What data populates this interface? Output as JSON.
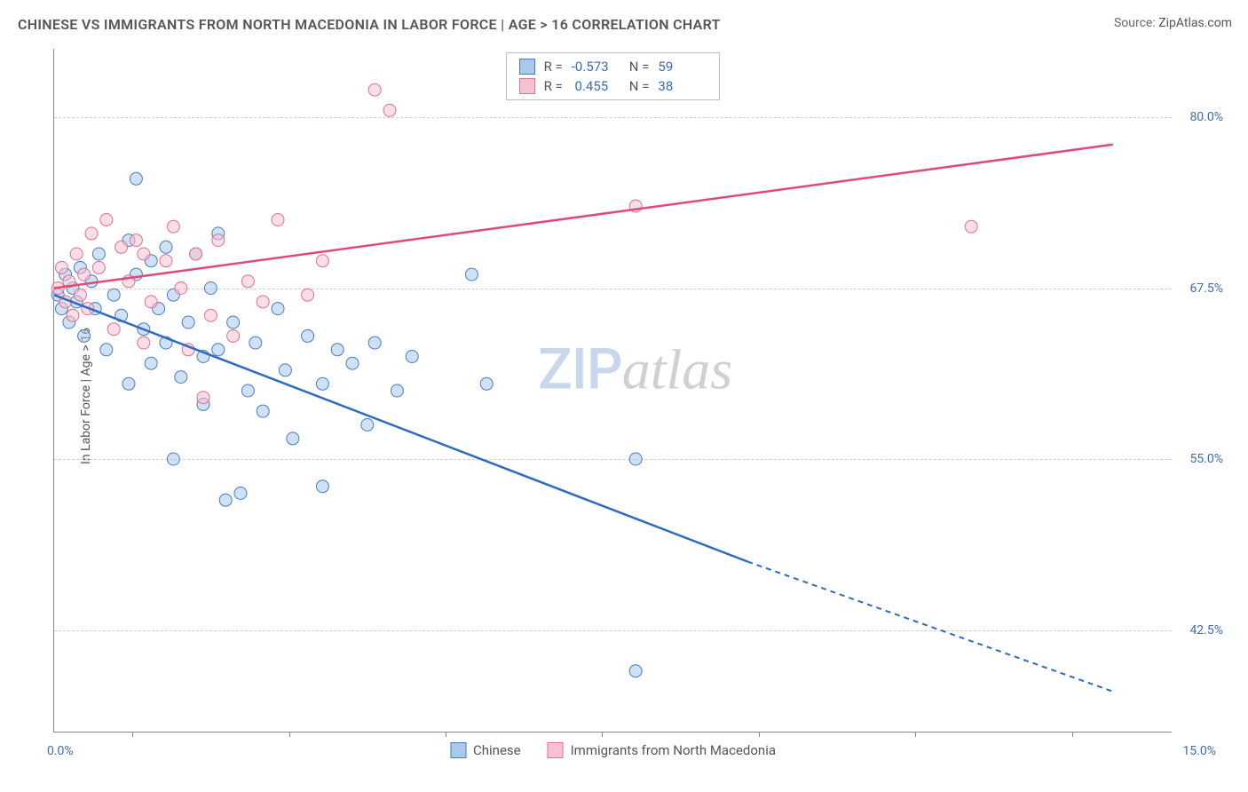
{
  "title": "CHINESE VS IMMIGRANTS FROM NORTH MACEDONIA IN LABOR FORCE | AGE > 16 CORRELATION CHART",
  "source_label": "Source:",
  "source_value": "ZipAtlas.com",
  "y_axis_title": "In Labor Force | Age > 16",
  "watermark_zip": "ZIP",
  "watermark_atlas": "atlas",
  "chart": {
    "type": "scatter",
    "xlim": [
      0,
      15
    ],
    "ylim": [
      35,
      85
    ],
    "x_axis": {
      "min_label": "0.0%",
      "max_label": "15.0%",
      "tick_positions_pct": [
        7,
        21,
        35,
        49,
        63,
        77,
        91
      ]
    },
    "y_axis": {
      "ticks": [
        {
          "value": 42.5,
          "label": "42.5%"
        },
        {
          "value": 55.0,
          "label": "55.0%"
        },
        {
          "value": 67.5,
          "label": "67.5%"
        },
        {
          "value": 80.0,
          "label": "80.0%"
        }
      ]
    },
    "series": [
      {
        "name": "Chinese",
        "fill_color": "#a8c8ec",
        "stroke_color": "#4a7bc0",
        "line_color": "#2e6bc0",
        "r_value": "-0.573",
        "n_value": "59",
        "trend": {
          "x1": 0.0,
          "y1": 67.0,
          "solid_x2": 9.3,
          "solid_y2": 47.5,
          "dash_x2": 14.2,
          "dash_y2": 38.0
        },
        "points": [
          {
            "x": 0.05,
            "y": 67.0
          },
          {
            "x": 0.1,
            "y": 66.0
          },
          {
            "x": 0.15,
            "y": 68.5
          },
          {
            "x": 0.2,
            "y": 65.0
          },
          {
            "x": 0.25,
            "y": 67.5
          },
          {
            "x": 0.3,
            "y": 66.5
          },
          {
            "x": 0.35,
            "y": 69.0
          },
          {
            "x": 0.4,
            "y": 64.0
          },
          {
            "x": 0.5,
            "y": 68.0
          },
          {
            "x": 0.55,
            "y": 66.0
          },
          {
            "x": 0.6,
            "y": 70.0
          },
          {
            "x": 0.7,
            "y": 63.0
          },
          {
            "x": 0.8,
            "y": 67.0
          },
          {
            "x": 0.9,
            "y": 65.5
          },
          {
            "x": 1.0,
            "y": 71.0
          },
          {
            "x": 1.0,
            "y": 60.5
          },
          {
            "x": 1.1,
            "y": 68.5
          },
          {
            "x": 1.1,
            "y": 75.5
          },
          {
            "x": 1.2,
            "y": 64.5
          },
          {
            "x": 1.3,
            "y": 62.0
          },
          {
            "x": 1.3,
            "y": 69.5
          },
          {
            "x": 1.4,
            "y": 66.0
          },
          {
            "x": 1.5,
            "y": 63.5
          },
          {
            "x": 1.5,
            "y": 70.5
          },
          {
            "x": 1.6,
            "y": 55.0
          },
          {
            "x": 1.6,
            "y": 67.0
          },
          {
            "x": 1.7,
            "y": 61.0
          },
          {
            "x": 1.8,
            "y": 65.0
          },
          {
            "x": 1.9,
            "y": 70.0
          },
          {
            "x": 2.0,
            "y": 62.5
          },
          {
            "x": 2.0,
            "y": 59.0
          },
          {
            "x": 2.1,
            "y": 67.5
          },
          {
            "x": 2.2,
            "y": 63.0
          },
          {
            "x": 2.2,
            "y": 71.5
          },
          {
            "x": 2.3,
            "y": 52.0
          },
          {
            "x": 2.4,
            "y": 65.0
          },
          {
            "x": 2.5,
            "y": 52.5
          },
          {
            "x": 2.6,
            "y": 60.0
          },
          {
            "x": 2.7,
            "y": 63.5
          },
          {
            "x": 2.8,
            "y": 58.5
          },
          {
            "x": 3.0,
            "y": 66.0
          },
          {
            "x": 3.1,
            "y": 61.5
          },
          {
            "x": 3.2,
            "y": 56.5
          },
          {
            "x": 3.4,
            "y": 64.0
          },
          {
            "x": 3.6,
            "y": 60.5
          },
          {
            "x": 3.6,
            "y": 53.0
          },
          {
            "x": 3.8,
            "y": 63.0
          },
          {
            "x": 4.0,
            "y": 62.0
          },
          {
            "x": 4.2,
            "y": 57.5
          },
          {
            "x": 4.3,
            "y": 63.5
          },
          {
            "x": 4.6,
            "y": 60.0
          },
          {
            "x": 4.8,
            "y": 62.5
          },
          {
            "x": 5.6,
            "y": 68.5
          },
          {
            "x": 5.8,
            "y": 60.5
          },
          {
            "x": 7.8,
            "y": 55.0
          },
          {
            "x": 7.8,
            "y": 39.5
          }
        ]
      },
      {
        "name": "Immigrants from North Macedonia",
        "fill_color": "#f5c2d0",
        "stroke_color": "#e07090",
        "line_color": "#e04a7a",
        "r_value": "0.455",
        "n_value": "38",
        "trend": {
          "x1": 0.0,
          "y1": 67.5,
          "solid_x2": 14.2,
          "solid_y2": 78.0
        },
        "points": [
          {
            "x": 0.05,
            "y": 67.5
          },
          {
            "x": 0.1,
            "y": 69.0
          },
          {
            "x": 0.15,
            "y": 66.5
          },
          {
            "x": 0.2,
            "y": 68.0
          },
          {
            "x": 0.25,
            "y": 65.5
          },
          {
            "x": 0.3,
            "y": 70.0
          },
          {
            "x": 0.35,
            "y": 67.0
          },
          {
            "x": 0.4,
            "y": 68.5
          },
          {
            "x": 0.45,
            "y": 66.0
          },
          {
            "x": 0.5,
            "y": 71.5
          },
          {
            "x": 0.6,
            "y": 69.0
          },
          {
            "x": 0.7,
            "y": 72.5
          },
          {
            "x": 0.8,
            "y": 64.5
          },
          {
            "x": 0.9,
            "y": 70.5
          },
          {
            "x": 1.0,
            "y": 68.0
          },
          {
            "x": 1.1,
            "y": 71.0
          },
          {
            "x": 1.2,
            "y": 63.5
          },
          {
            "x": 1.2,
            "y": 70.0
          },
          {
            "x": 1.3,
            "y": 66.5
          },
          {
            "x": 1.5,
            "y": 69.5
          },
          {
            "x": 1.6,
            "y": 72.0
          },
          {
            "x": 1.7,
            "y": 67.5
          },
          {
            "x": 1.8,
            "y": 63.0
          },
          {
            "x": 1.9,
            "y": 70.0
          },
          {
            "x": 2.0,
            "y": 59.5
          },
          {
            "x": 2.1,
            "y": 65.5
          },
          {
            "x": 2.2,
            "y": 71.0
          },
          {
            "x": 2.4,
            "y": 64.0
          },
          {
            "x": 2.6,
            "y": 68.0
          },
          {
            "x": 2.8,
            "y": 66.5
          },
          {
            "x": 3.0,
            "y": 72.5
          },
          {
            "x": 3.4,
            "y": 67.0
          },
          {
            "x": 3.6,
            "y": 69.5
          },
          {
            "x": 4.3,
            "y": 82.0
          },
          {
            "x": 4.5,
            "y": 80.5
          },
          {
            "x": 7.8,
            "y": 73.5
          },
          {
            "x": 12.3,
            "y": 72.0
          }
        ]
      }
    ],
    "background_color": "#ffffff",
    "grid_color": "#cccccc",
    "axis_color": "#888888",
    "label_color": "#3b6db5",
    "marker_radius": 7,
    "marker_opacity": 0.55,
    "line_width": 2.5
  },
  "legend_labels": {
    "r": "R =",
    "n": "N ="
  }
}
